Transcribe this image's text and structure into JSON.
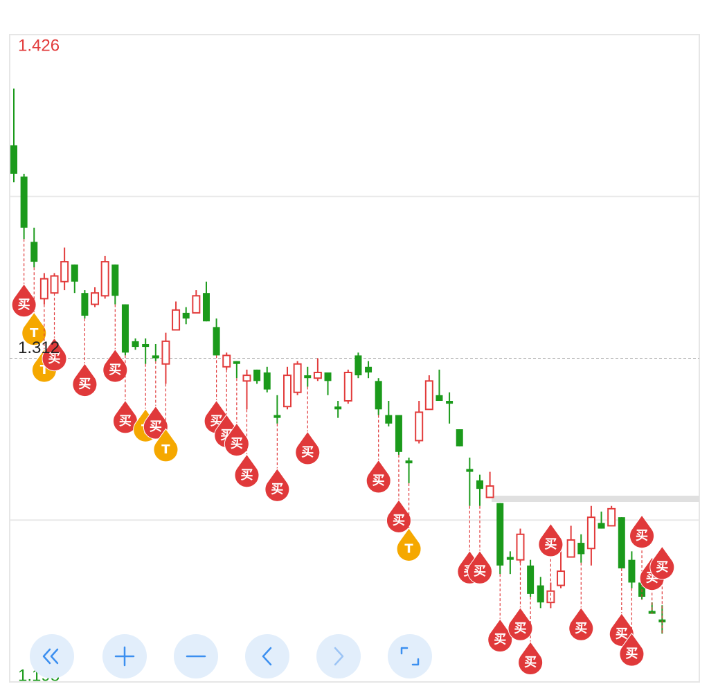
{
  "chart_data": {
    "type": "candlestick",
    "ylim": [
      1.198,
      1.426
    ],
    "yticks": [
      1.198,
      1.312,
      1.426
    ],
    "up_color": "#e23b3b",
    "down_color": "#1b9a1b",
    "open": [
      1.387,
      1.376,
      1.353,
      1.333,
      1.335,
      1.339,
      1.345,
      1.335,
      1.331,
      1.334,
      1.345,
      1.331,
      1.318,
      1.317,
      1.313,
      1.31,
      1.322,
      1.328,
      1.328,
      1.335,
      1.323,
      1.309,
      1.311,
      1.304,
      1.308,
      1.307,
      1.292,
      1.295,
      1.3,
      1.306,
      1.305,
      1.307,
      1.295,
      1.297,
      1.313,
      1.309,
      1.304,
      1.292,
      1.292,
      1.276,
      1.283,
      1.294,
      1.299,
      1.297,
      1.287,
      1.273,
      1.269,
      1.263,
      1.261,
      1.242,
      1.241,
      1.239,
      1.232,
      1.226,
      1.232,
      1.242,
      1.247,
      1.245,
      1.254,
      1.253,
      1.256,
      1.241,
      1.233,
      1.223,
      1.22
    ],
    "high": [
      1.407,
      1.377,
      1.358,
      1.342,
      1.342,
      1.351,
      1.345,
      1.336,
      1.337,
      1.348,
      1.345,
      1.331,
      1.319,
      1.319,
      1.317,
      1.321,
      1.332,
      1.33,
      1.336,
      1.339,
      1.326,
      1.314,
      1.311,
      1.308,
      1.308,
      1.309,
      1.299,
      1.309,
      1.311,
      1.309,
      1.312,
      1.307,
      1.297,
      1.308,
      1.314,
      1.311,
      1.305,
      1.297,
      1.292,
      1.277,
      1.297,
      1.306,
      1.308,
      1.3,
      1.287,
      1.277,
      1.271,
      1.272,
      1.261,
      1.244,
      1.252,
      1.241,
      1.235,
      1.233,
      1.244,
      1.253,
      1.25,
      1.26,
      1.258,
      1.26,
      1.256,
      1.244,
      1.236,
      1.226,
      1.225
    ],
    "low": [
      1.374,
      1.354,
      1.344,
      1.331,
      1.335,
      1.336,
      1.335,
      1.326,
      1.33,
      1.333,
      1.331,
      1.313,
      1.315,
      1.31,
      1.311,
      1.303,
      1.322,
      1.324,
      1.328,
      1.325,
      1.313,
      1.308,
      1.305,
      1.294,
      1.303,
      1.3,
      1.289,
      1.294,
      1.299,
      1.302,
      1.304,
      1.299,
      1.291,
      1.296,
      1.305,
      1.305,
      1.292,
      1.288,
      1.278,
      1.268,
      1.282,
      1.294,
      1.297,
      1.289,
      1.281,
      1.26,
      1.26,
      1.263,
      1.236,
      1.236,
      1.24,
      1.228,
      1.224,
      1.224,
      1.231,
      1.242,
      1.24,
      1.239,
      1.252,
      1.253,
      1.238,
      1.231,
      1.227,
      1.222,
      1.215
    ],
    "close": [
      1.377,
      1.358,
      1.346,
      1.34,
      1.341,
      1.346,
      1.339,
      1.327,
      1.335,
      1.346,
      1.334,
      1.314,
      1.316,
      1.316,
      1.312,
      1.318,
      1.329,
      1.326,
      1.334,
      1.325,
      1.313,
      1.313,
      1.31,
      1.306,
      1.304,
      1.301,
      1.291,
      1.306,
      1.31,
      1.305,
      1.307,
      1.304,
      1.294,
      1.307,
      1.306,
      1.307,
      1.294,
      1.289,
      1.279,
      1.275,
      1.293,
      1.304,
      1.297,
      1.296,
      1.281,
      1.272,
      1.266,
      1.267,
      1.239,
      1.241,
      1.25,
      1.229,
      1.226,
      1.23,
      1.237,
      1.248,
      1.243,
      1.256,
      1.252,
      1.259,
      1.238,
      1.233,
      1.228,
      1.222,
      1.219
    ],
    "markers": [
      {
        "candle": 1,
        "label": "买",
        "color": "#e0393a"
      },
      {
        "candle": 2,
        "label": "T",
        "color": "#f5a800"
      },
      {
        "candle": 3,
        "label": "T",
        "color": "#f5a800"
      },
      {
        "candle": 4,
        "label": "买",
        "color": "#e0393a"
      },
      {
        "candle": 7,
        "label": "买",
        "color": "#e0393a"
      },
      {
        "candle": 10,
        "label": "买",
        "color": "#e0393a"
      },
      {
        "candle": 11,
        "label": "买",
        "color": "#e0393a"
      },
      {
        "candle": 13,
        "label": "T",
        "color": "#f5a800"
      },
      {
        "candle": 14,
        "label": "买",
        "color": "#e0393a"
      },
      {
        "candle": 15,
        "label": "T",
        "color": "#f5a800"
      },
      {
        "candle": 20,
        "label": "买",
        "color": "#e0393a"
      },
      {
        "candle": 21,
        "label": "买",
        "color": "#e0393a"
      },
      {
        "candle": 22,
        "label": "买",
        "color": "#e0393a"
      },
      {
        "candle": 23,
        "label": "买",
        "color": "#e0393a"
      },
      {
        "candle": 26,
        "label": "买",
        "color": "#e0393a"
      },
      {
        "candle": 29,
        "label": "买",
        "color": "#e0393a"
      },
      {
        "candle": 36,
        "label": "买",
        "color": "#e0393a"
      },
      {
        "candle": 38,
        "label": "买",
        "color": "#e0393a"
      },
      {
        "candle": 39,
        "label": "T",
        "color": "#f5a800"
      },
      {
        "candle": 45,
        "label": "买",
        "color": "#e0393a"
      },
      {
        "candle": 46,
        "label": "买",
        "color": "#e0393a"
      },
      {
        "candle": 48,
        "label": "买",
        "color": "#e0393a"
      },
      {
        "candle": 50,
        "label": "买",
        "color": "#e0393a"
      },
      {
        "candle": 51,
        "label": "买",
        "color": "#e0393a"
      },
      {
        "candle": 53,
        "label": "买",
        "color": "#e0393a"
      },
      {
        "candle": 56,
        "label": "买",
        "color": "#e0393a"
      },
      {
        "candle": 60,
        "label": "买",
        "color": "#e0393a"
      },
      {
        "candle": 61,
        "label": "买",
        "color": "#e0393a"
      },
      {
        "candle": 62,
        "label": "买",
        "color": "#e0393a"
      },
      {
        "candle": 63,
        "label": "买",
        "color": "#e0393a"
      },
      {
        "candle": 64,
        "label": "买",
        "color": "#e0393a"
      }
    ]
  }
}
